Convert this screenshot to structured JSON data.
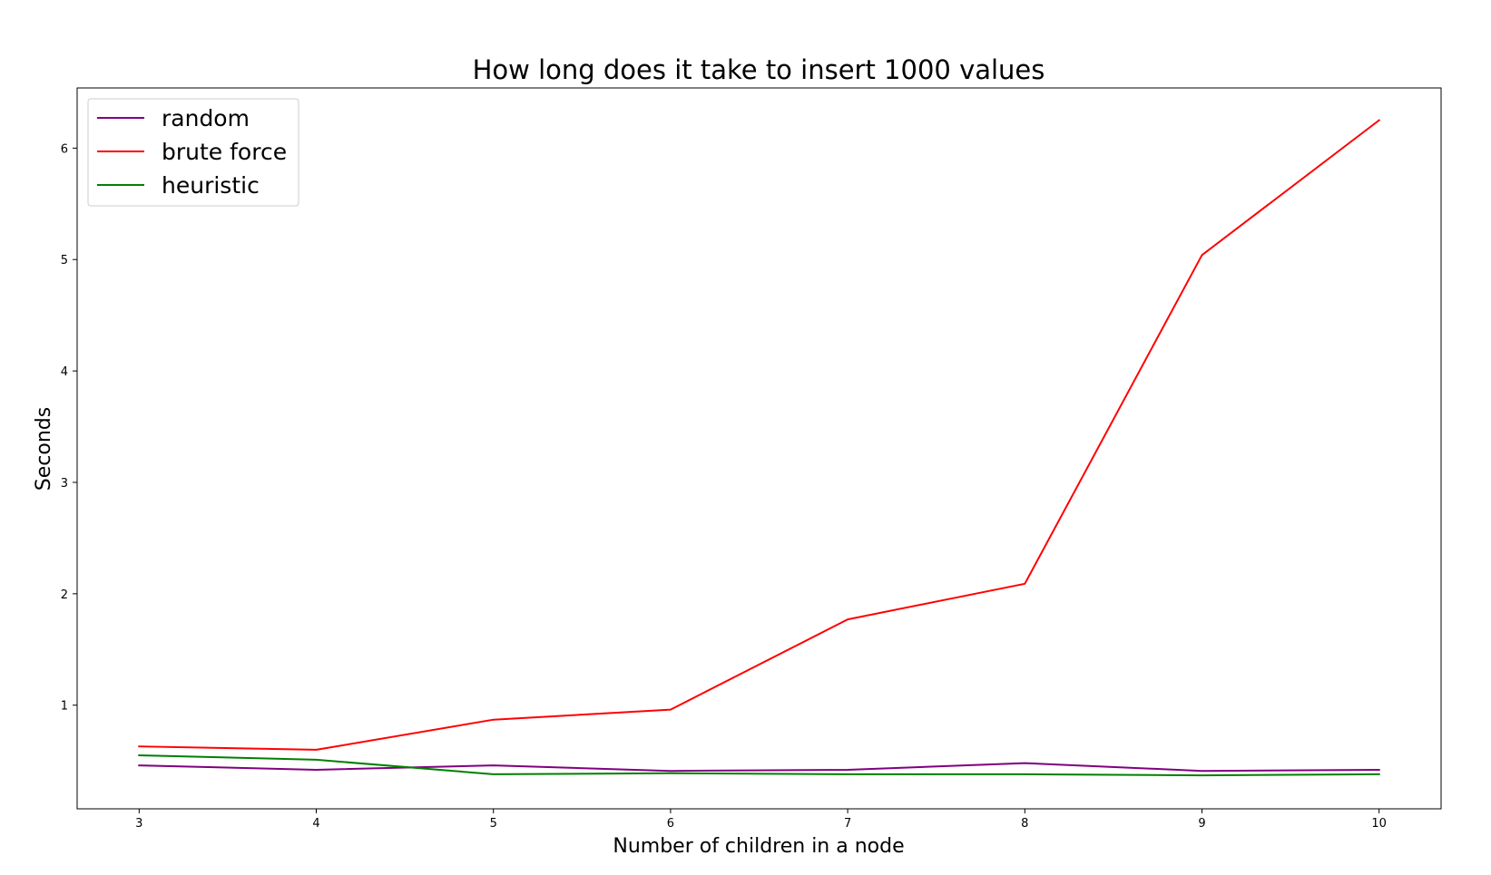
{
  "chart_data": {
    "type": "line",
    "title": "How long does it take to insert 1000 values",
    "xlabel": "Number of children in a node",
    "ylabel": "Seconds",
    "x": [
      3,
      4,
      5,
      6,
      7,
      8,
      9,
      10
    ],
    "xlim": [
      2.65,
      10.35
    ],
    "ylim": [
      0.07,
      6.54
    ],
    "xticks": [
      3,
      4,
      5,
      6,
      7,
      8,
      9,
      10
    ],
    "yticks": [
      1,
      2,
      3,
      4,
      5,
      6
    ],
    "grid": false,
    "legend_position": "top-left",
    "series": [
      {
        "name": "random",
        "color": "#800080",
        "values": [
          0.46,
          0.42,
          0.46,
          0.41,
          0.42,
          0.48,
          0.41,
          0.42
        ]
      },
      {
        "name": "brute force",
        "color": "#ff0000",
        "values": [
          0.63,
          0.6,
          0.87,
          0.96,
          1.77,
          2.09,
          5.04,
          6.25
        ]
      },
      {
        "name": "heuristic",
        "color": "#008000",
        "values": [
          0.55,
          0.51,
          0.38,
          0.39,
          0.38,
          0.38,
          0.37,
          0.38
        ]
      }
    ]
  }
}
